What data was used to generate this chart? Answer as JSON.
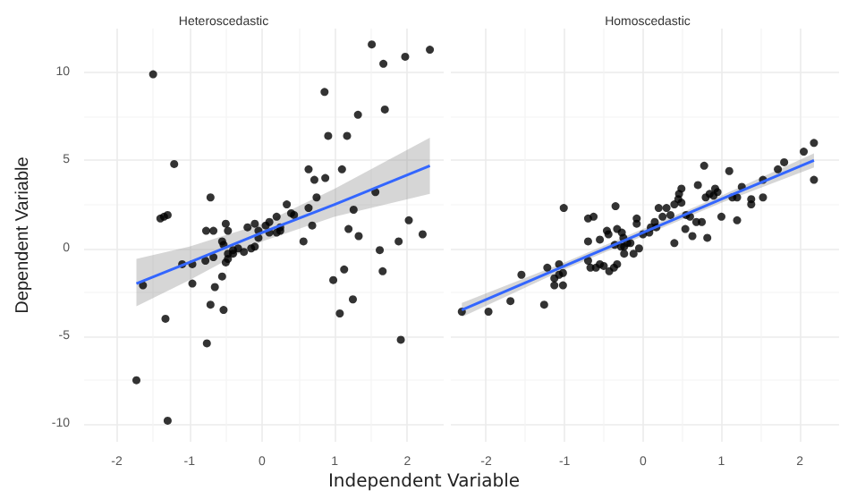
{
  "chart_data": [
    {
      "type": "scatter",
      "title": "Heteroscedastic",
      "xlabel": "Independent Variable",
      "ylabel": "Dependent Variable",
      "xlim": [
        -2.45,
        2.5
      ],
      "ylim": [
        -11,
        12.5
      ],
      "xticks": [
        -2,
        -1,
        0,
        1,
        2
      ],
      "yticks": [
        -10,
        -5,
        0,
        5,
        10
      ],
      "grid": true,
      "series": [
        {
          "marker": "circle",
          "color": "#000000",
          "x": [
            -1.5,
            -1.21,
            -1.4,
            -1.35,
            -1.3,
            -0.71,
            1.51,
            1.67,
            1.97,
            2.31,
            0.86,
            1.69,
            1.32,
            0.91,
            1.17,
            0.64,
            1.1,
            0.72,
            0.87,
            0.75,
            1.56,
            1.26,
            0.34,
            0.64,
            0.4,
            0.44,
            0.69,
            1.19,
            2.02,
            2.21,
            0.1,
            0.2,
            0.25,
            0.05,
            -0.2,
            -0.1,
            -0.05,
            -0.5,
            -0.47,
            -0.77,
            -0.67,
            -1.64,
            -1.73,
            -1.3,
            -1.33,
            -0.76,
            -0.71,
            -0.53,
            -0.65,
            -0.55,
            -0.96,
            -1.1,
            -0.96,
            -0.78,
            -0.67,
            -0.5,
            -0.47,
            -0.47,
            -0.4,
            -0.53,
            -0.55,
            -0.4,
            -0.33,
            -0.25,
            -0.15,
            -0.1,
            -0.05,
            0.1,
            0.2,
            0.25,
            0.57,
            0.98,
            1.07,
            1.13,
            1.25,
            1.33,
            1.62,
            1.66,
            1.88,
            1.91
          ],
          "values": [
            9.9,
            4.8,
            1.7,
            1.8,
            1.9,
            2.9,
            11.6,
            10.5,
            10.9,
            11.3,
            8.9,
            7.9,
            7.6,
            6.4,
            6.4,
            4.5,
            4.5,
            3.9,
            4,
            2.9,
            3.2,
            2.2,
            2.5,
            2.3,
            2,
            1.9,
            1.3,
            1.1,
            1.6,
            0.8,
            1.5,
            1.8,
            1.2,
            1.3,
            1.2,
            1.4,
            1,
            1.4,
            1,
            1,
            1,
            -2.1,
            -7.5,
            -9.8,
            -4,
            -5.4,
            -3.2,
            -3.5,
            -2.2,
            -1.6,
            -2,
            -0.9,
            -0.9,
            -0.7,
            -0.5,
            -0.8,
            -0.6,
            -0.3,
            -0.3,
            0.2,
            0.4,
            -0.1,
            0,
            -0.2,
            0,
            0.1,
            0.6,
            0.9,
            0.9,
            1,
            0.4,
            -1.8,
            -3.7,
            -1.2,
            -2.9,
            0.7,
            -0.1,
            -1.3,
            0.4,
            -5.2
          ]
        },
        {
          "type": "line",
          "marker": "none",
          "color": "#3366ff",
          "line_style": "solid",
          "x": [
            -1.73,
            -1,
            0,
            1,
            2.31
          ],
          "values": [
            -2,
            -0.8,
            0.9,
            2.5,
            4.7
          ],
          "lower": [
            -3.3,
            -1.8,
            0.4,
            1.8,
            3.1
          ],
          "upper": [
            -0.6,
            0.1,
            1.4,
            3.4,
            6.3
          ]
        }
      ]
    },
    {
      "type": "scatter",
      "title": "Homoscedastic",
      "xlim": [
        -2.45,
        2.5
      ],
      "ylim": [
        -11,
        12.5
      ],
      "xticks": [
        -2,
        -1,
        0,
        1,
        2
      ],
      "yticks": [
        -10,
        -5,
        0,
        5,
        10
      ],
      "grid": true,
      "tick_labels": "x",
      "series": [
        {
          "marker": "circle",
          "color": "#000000",
          "x": [
            2.18,
            2.05,
            2.18,
            1.8,
            1.72,
            1.53,
            1.53,
            1.38,
            1.38,
            1.26,
            1.2,
            1.14,
            1.2,
            1.1,
            0.78,
            0.95,
            0.9,
            0.8,
            0.85,
            0.92,
            0.7,
            1,
            0.82,
            0.75,
            0.68,
            0.6,
            0.55,
            0.49,
            0.46,
            0.45,
            0.4,
            0.3,
            0.2,
            0.35,
            0.25,
            0.15,
            0.49,
            0.63,
            0.54,
            -0.08,
            -0.08,
            -0.35,
            -1.01,
            -0.7,
            -0.63,
            -0.46,
            -0.44,
            -0.33,
            -0.27,
            0.08,
            0.17,
            -2.31,
            -1.97,
            -1.69,
            -1.26,
            -1.55,
            -1.22,
            -1.13,
            -1.07,
            -1.02,
            -1.07,
            -1.13,
            -1.02,
            -0.7,
            -0.7,
            -0.67,
            -0.6,
            -0.55,
            -0.55,
            -0.5,
            -0.43,
            -0.37,
            -0.33,
            -0.36,
            -0.28,
            -0.24,
            -0.25,
            -0.2,
            -0.24,
            -0.16,
            -0.12,
            -0.05,
            0,
            0.1,
            0.4
          ],
          "values": [
            6,
            5.5,
            3.9,
            4.9,
            4.5,
            3.9,
            2.9,
            2.8,
            2.5,
            3.5,
            2.9,
            2.9,
            1.6,
            4.4,
            4.7,
            3.2,
            3,
            2.9,
            3.1,
            3.4,
            3.6,
            1.8,
            0.6,
            1.5,
            1.5,
            1.8,
            1.9,
            3.4,
            3.1,
            2.8,
            2.5,
            2.3,
            2.3,
            1.9,
            1.8,
            1.5,
            2.6,
            0.7,
            1.1,
            1.7,
            1.4,
            2.4,
            2.3,
            1.7,
            1.8,
            1,
            0.8,
            1.1,
            0.9,
            0.9,
            1.2,
            -3.6,
            -3.6,
            -3,
            -3.2,
            -1.5,
            -1.1,
            -1.7,
            -1.5,
            -1.4,
            -0.9,
            -2.1,
            -2.1,
            0.4,
            -0.7,
            -1.1,
            -1.1,
            0.5,
            -0.9,
            -1,
            -1.3,
            -1.1,
            -0.9,
            0.2,
            0.1,
            0.1,
            0.6,
            0.3,
            -0.3,
            0.3,
            -0.3,
            0,
            0.8,
            1.2,
            0.3
          ]
        },
        {
          "type": "line",
          "marker": "none",
          "color": "#3366ff",
          "line_style": "solid",
          "x": [
            -2.31,
            -1,
            0,
            1,
            2.18
          ],
          "values": [
            -3.5,
            -1,
            0.9,
            2.8,
            5
          ],
          "lower": [
            -3.9,
            -1.2,
            0.7,
            2.6,
            4.6
          ],
          "upper": [
            -3.1,
            -0.8,
            1.1,
            3,
            5.4
          ]
        }
      ]
    }
  ]
}
